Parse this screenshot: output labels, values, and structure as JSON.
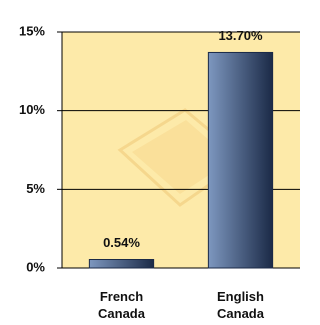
{
  "chart_data": {
    "type": "bar",
    "categories": [
      "French Canada",
      "English Canada"
    ],
    "values": [
      0.54,
      13.7
    ],
    "value_labels": [
      "0.54%",
      "13.70%"
    ],
    "color": "#1b2a47",
    "ylim": [
      0,
      15
    ],
    "yticks": [
      {
        "value": 0,
        "label": "0%"
      },
      {
        "value": 5,
        "label": "5%"
      },
      {
        "value": 10,
        "label": "10%"
      },
      {
        "value": 15,
        "label": "15%"
      }
    ],
    "grid": true
  }
}
